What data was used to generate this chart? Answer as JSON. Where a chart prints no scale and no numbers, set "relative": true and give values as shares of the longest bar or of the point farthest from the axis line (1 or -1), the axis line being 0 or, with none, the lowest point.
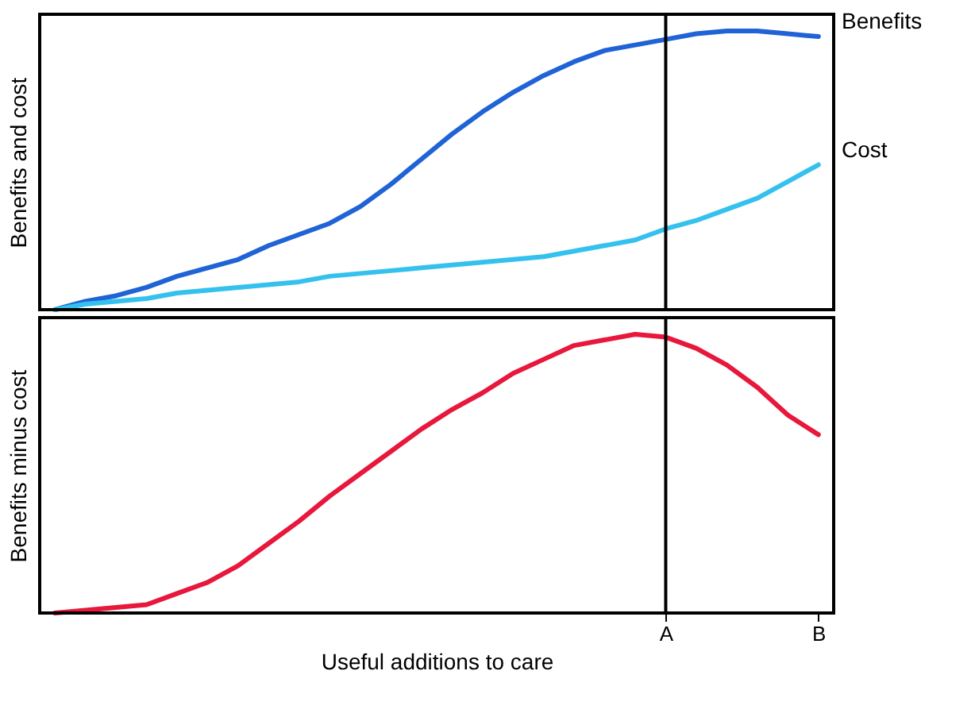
{
  "chart_data": [
    {
      "type": "line",
      "ylabel": "Benefits and cost",
      "relative": true,
      "tick_labels": false,
      "categories": [
        null,
        null,
        null,
        null,
        null,
        null,
        null,
        null,
        null,
        null,
        null,
        null,
        null,
        null,
        null,
        null,
        null,
        null,
        null,
        null,
        null,
        null,
        null,
        null,
        null,
        null
      ],
      "series": [
        {
          "name": "Benefits",
          "color": "#1f63d6",
          "values": [
            0,
            0.03,
            0.05,
            0.08,
            0.12,
            0.15,
            0.18,
            0.23,
            0.27,
            0.31,
            0.37,
            0.45,
            0.54,
            0.63,
            0.71,
            0.78,
            0.84,
            0.89,
            0.93,
            0.95,
            0.97,
            0.99,
            1,
            1,
            0.99,
            0.98
          ]
        },
        {
          "name": "Cost",
          "color": "#35c1ee",
          "values": [
            0,
            0.02,
            0.03,
            0.04,
            0.06,
            0.07,
            0.08,
            0.09,
            0.1,
            0.12,
            0.13,
            0.14,
            0.15,
            0.16,
            0.17,
            0.18,
            0.19,
            0.21,
            0.23,
            0.25,
            0.29,
            0.32,
            0.36,
            0.4,
            0.46,
            0.52
          ]
        }
      ]
    },
    {
      "type": "line",
      "xlabel": "Useful additions to care",
      "ylabel": "Benefits minus cost",
      "relative": true,
      "tick_labels": "x",
      "categories": [
        null,
        null,
        null,
        null,
        null,
        null,
        null,
        null,
        null,
        null,
        null,
        null,
        null,
        null,
        null,
        null,
        null,
        null,
        null,
        null,
        "A",
        null,
        null,
        null,
        null,
        "B"
      ],
      "series": [
        {
          "color": "#e8173c",
          "values": [
            0,
            0.01,
            0.02,
            0.03,
            0.07,
            0.11,
            0.17,
            0.25,
            0.33,
            0.42,
            0.5,
            0.58,
            0.66,
            0.73,
            0.79,
            0.86,
            0.91,
            0.96,
            0.98,
            1,
            0.99,
            0.95,
            0.89,
            0.81,
            0.71,
            0.64
          ]
        }
      ],
      "ref_lines": [
        {
          "axis": "x",
          "value": "A",
          "color": "#000000"
        }
      ]
    }
  ]
}
